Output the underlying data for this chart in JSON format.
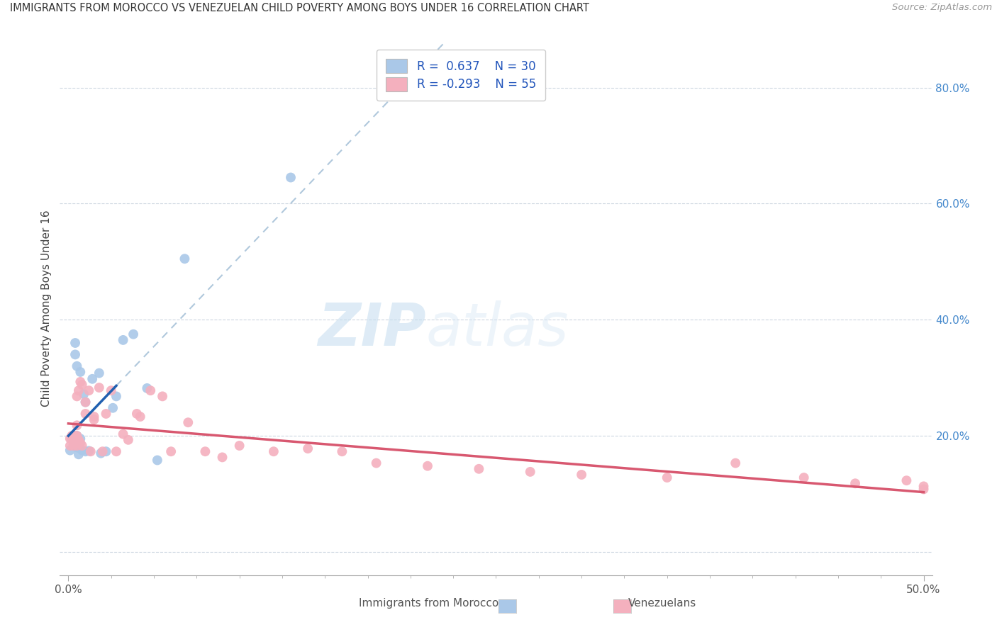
{
  "title": "IMMIGRANTS FROM MOROCCO VS VENEZUELAN CHILD POVERTY AMONG BOYS UNDER 16 CORRELATION CHART",
  "source": "Source: ZipAtlas.com",
  "ylabel": "Child Poverty Among Boys Under 16",
  "ytick_vals": [
    0.0,
    0.2,
    0.4,
    0.6,
    0.8
  ],
  "ytick_labels": [
    "",
    "20.0%",
    "40.0%",
    "60.0%",
    "80.0%"
  ],
  "xlim": [
    -0.005,
    0.505
  ],
  "ylim": [
    -0.04,
    0.88
  ],
  "r_blue": "0.637",
  "n_blue": "30",
  "r_pink": "-0.293",
  "n_pink": "55",
  "color_blue": "#aac8e8",
  "color_pink": "#f4b0be",
  "color_blue_line": "#2060b0",
  "color_pink_line": "#d85870",
  "color_dashed_line": "#b0c8dc",
  "watermark_zip": "ZIP",
  "watermark_atlas": "atlas",
  "label_blue": "Immigrants from Morocco",
  "label_pink": "Venezuelans",
  "legend_text_color": "#2255bb",
  "ytick_color": "#4488cc",
  "xtick_color": "#555555",
  "blue_x": [
    0.001,
    0.002,
    0.003,
    0.003,
    0.004,
    0.004,
    0.005,
    0.005,
    0.005,
    0.006,
    0.006,
    0.007,
    0.007,
    0.008,
    0.009,
    0.01,
    0.01,
    0.012,
    0.014,
    0.018,
    0.019,
    0.022,
    0.026,
    0.028,
    0.032,
    0.038,
    0.046,
    0.052,
    0.068,
    0.13
  ],
  "blue_y": [
    0.175,
    0.195,
    0.19,
    0.185,
    0.34,
    0.36,
    0.18,
    0.2,
    0.32,
    0.168,
    0.182,
    0.195,
    0.31,
    0.175,
    0.272,
    0.173,
    0.258,
    0.174,
    0.298,
    0.308,
    0.17,
    0.173,
    0.248,
    0.268,
    0.365,
    0.375,
    0.282,
    0.158,
    0.505,
    0.645
  ],
  "pink_x": [
    0.001,
    0.001,
    0.002,
    0.002,
    0.003,
    0.003,
    0.004,
    0.004,
    0.005,
    0.005,
    0.005,
    0.005,
    0.006,
    0.006,
    0.007,
    0.007,
    0.008,
    0.008,
    0.01,
    0.01,
    0.012,
    0.013,
    0.015,
    0.015,
    0.018,
    0.02,
    0.022,
    0.025,
    0.028,
    0.032,
    0.035,
    0.04,
    0.042,
    0.048,
    0.055,
    0.06,
    0.07,
    0.08,
    0.09,
    0.1,
    0.12,
    0.14,
    0.16,
    0.18,
    0.21,
    0.24,
    0.27,
    0.3,
    0.35,
    0.39,
    0.43,
    0.46,
    0.49,
    0.5,
    0.5
  ],
  "pink_y": [
    0.183,
    0.195,
    0.195,
    0.2,
    0.183,
    0.195,
    0.188,
    0.2,
    0.183,
    0.2,
    0.218,
    0.268,
    0.193,
    0.278,
    0.188,
    0.293,
    0.183,
    0.288,
    0.238,
    0.258,
    0.278,
    0.173,
    0.228,
    0.233,
    0.283,
    0.173,
    0.238,
    0.278,
    0.173,
    0.203,
    0.193,
    0.238,
    0.233,
    0.278,
    0.268,
    0.173,
    0.223,
    0.173,
    0.163,
    0.183,
    0.173,
    0.178,
    0.173,
    0.153,
    0.148,
    0.143,
    0.138,
    0.133,
    0.128,
    0.153,
    0.128,
    0.118,
    0.123,
    0.113,
    0.108
  ]
}
